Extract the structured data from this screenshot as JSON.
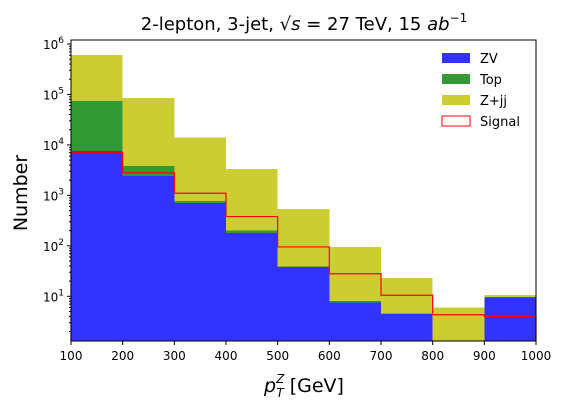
{
  "chart_data": {
    "type": "bar",
    "title": "2-lepton, 3-jet, √s = 27 TeV, 15 ab⁻¹",
    "title_parts": {
      "prefix": "2-lepton, 3-jet, ",
      "sqrt": "√",
      "var": "s",
      "eq": " = 27 TeV, 15 ",
      "unit": "ab",
      "exp": "−1"
    },
    "xlabel": "p_T^Z [GeV]",
    "xlabel_parts": {
      "p": "p",
      "sup": "Z",
      "sub": "T",
      "rest": " [GeV]"
    },
    "ylabel": "Number",
    "yscale": "log",
    "xlim": [
      100,
      1000
    ],
    "ylim": [
      1.3,
      1200000
    ],
    "x_ticks": [
      "100",
      "200",
      "300",
      "400",
      "500",
      "600",
      "700",
      "800",
      "900",
      "1000"
    ],
    "y_ticks": [
      {
        "value": 10,
        "base": "10",
        "exp": "1"
      },
      {
        "value": 100,
        "base": "10",
        "exp": "2"
      },
      {
        "value": 1000,
        "base": "10",
        "exp": "3"
      },
      {
        "value": 10000,
        "base": "10",
        "exp": "4"
      },
      {
        "value": 100000,
        "base": "10",
        "exp": "5"
      },
      {
        "value": 1000000,
        "base": "10",
        "exp": "6"
      }
    ],
    "bin_edges": [
      100,
      200,
      300,
      400,
      500,
      600,
      700,
      800,
      900,
      1000
    ],
    "stacked_series": [
      {
        "name": "ZV",
        "color": "#3333ff",
        "cumulative": [
          7500,
          2400,
          700,
          180,
          38,
          7.5,
          4.5,
          0,
          9.5
        ]
      },
      {
        "name": "Top",
        "color": "#339933",
        "cumulative": [
          75000,
          3800,
          780,
          200,
          39,
          8,
          4.6,
          0,
          9.6
        ]
      },
      {
        "name": "Z+jj",
        "color": "#cccc33",
        "cumulative": [
          600000,
          85000,
          14000,
          3300,
          540,
          95,
          23,
          6,
          10.5
        ]
      }
    ],
    "signal": {
      "name": "Signal",
      "color": "#ff0000",
      "values": [
        7000,
        2800,
        1100,
        380,
        95,
        28,
        10.5,
        4.3,
        4
      ]
    },
    "legend": {
      "position": "top-right"
    }
  }
}
